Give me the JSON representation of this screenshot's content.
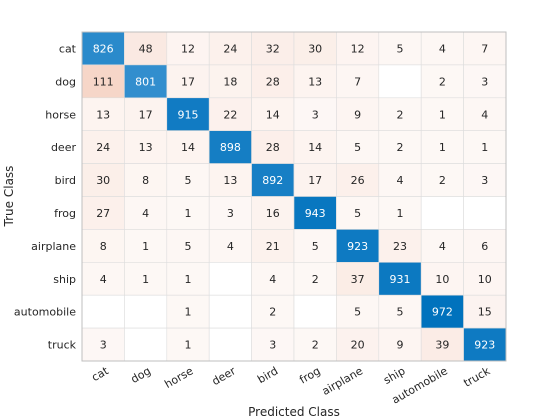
{
  "chart_data": {
    "type": "heatmap",
    "xlabel": "Predicted Class",
    "ylabel": "True Class",
    "x_categories": [
      "cat",
      "dog",
      "horse",
      "deer",
      "bird",
      "frog",
      "airplane",
      "ship",
      "automobile",
      "truck"
    ],
    "y_categories": [
      "cat",
      "dog",
      "horse",
      "deer",
      "bird",
      "frog",
      "airplane",
      "ship",
      "automobile",
      "truck"
    ],
    "values": [
      [
        826,
        48,
        12,
        24,
        32,
        30,
        12,
        5,
        4,
        7
      ],
      [
        111,
        801,
        17,
        18,
        28,
        13,
        7,
        null,
        2,
        3
      ],
      [
        13,
        17,
        915,
        22,
        14,
        3,
        9,
        2,
        1,
        4
      ],
      [
        24,
        13,
        14,
        898,
        28,
        14,
        5,
        2,
        1,
        1
      ],
      [
        30,
        8,
        5,
        13,
        892,
        17,
        26,
        4,
        2,
        3
      ],
      [
        27,
        4,
        1,
        3,
        16,
        943,
        5,
        1,
        null,
        null
      ],
      [
        8,
        1,
        5,
        4,
        21,
        5,
        923,
        23,
        4,
        6
      ],
      [
        4,
        1,
        1,
        null,
        4,
        2,
        37,
        931,
        10,
        10
      ],
      [
        null,
        null,
        1,
        null,
        2,
        null,
        5,
        5,
        972,
        15
      ],
      [
        3,
        null,
        1,
        null,
        3,
        2,
        20,
        9,
        39,
        923
      ]
    ],
    "colors": {
      "diagonal": "#0072bd",
      "off_diagonal_max": "#d95319",
      "empty": "#ffffff",
      "grid": "#dddddd"
    }
  }
}
